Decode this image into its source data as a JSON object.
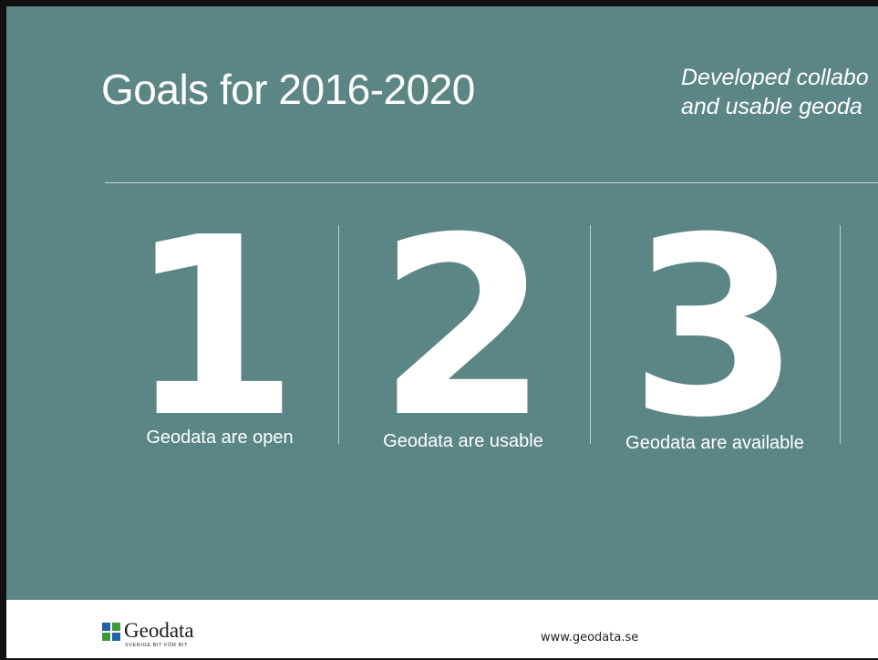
{
  "slide": {
    "title": "Goals for 2016-2020",
    "subtitle_line1": "Developed collabo",
    "subtitle_line2": "and usable geoda"
  },
  "goals": [
    {
      "number": "1",
      "label": "Geodata are open"
    },
    {
      "number": "2",
      "label": "Geodata are usable"
    },
    {
      "number": "3",
      "label": "Geodata are available"
    }
  ],
  "footer": {
    "logo_word": "Geodata",
    "logo_tagline": "SVERIGE BIT FÖR BIT",
    "url": "www.geodata.se"
  },
  "colors": {
    "slide_background": "#5c8586",
    "text": "#ffffff",
    "logo_blue": "#1e63a8",
    "logo_green": "#3c9a3a"
  }
}
